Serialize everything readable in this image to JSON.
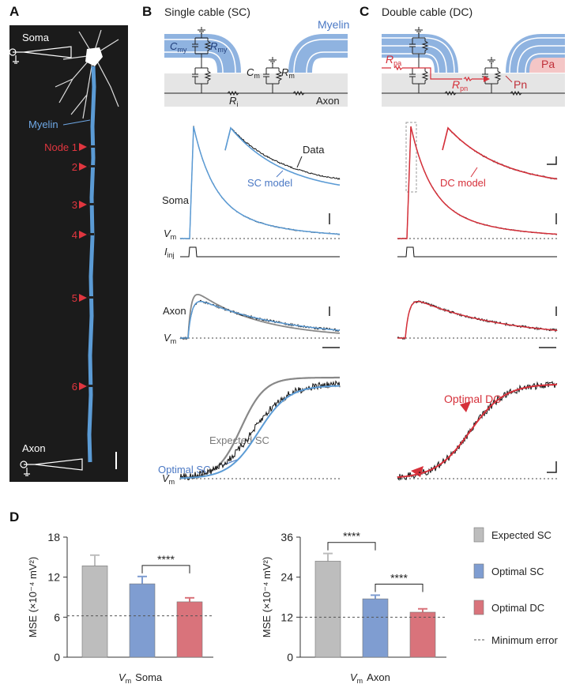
{
  "panel_a": {
    "letter": "A",
    "soma": "Soma",
    "myelin": "Myelin",
    "nodes": [
      "Node 1",
      "2",
      "3",
      "4",
      "5",
      "6"
    ],
    "axon": "Axon"
  },
  "panel_b": {
    "letter": "B",
    "title": "Single cable (SC)",
    "myelin": "Myelin",
    "c_my": {
      "main": "C",
      "sub": "my"
    },
    "r_my": {
      "main": "R",
      "sub": "my"
    },
    "c_m": {
      "main": "C",
      "sub": "m"
    },
    "r_m": {
      "main": "R",
      "sub": "m"
    },
    "r_i": {
      "main": "R",
      "sub": "i"
    },
    "axon": "Axon",
    "data": "Data",
    "model": "SC model",
    "soma": "Soma",
    "vm_soma": {
      "main": "V",
      "sub": "m"
    },
    "i_inj": {
      "main": "I",
      "sub": "inj"
    },
    "axon_trace": "Axon",
    "vm_axon": {
      "main": "V",
      "sub": "m"
    },
    "expected": "Expected SC",
    "optimal": "Optimal SC",
    "vm_zoom": {
      "main": "V",
      "sub": "m"
    }
  },
  "panel_c": {
    "letter": "C",
    "title": "Double cable (DC)",
    "r_pa": {
      "main": "R",
      "sub": "pa"
    },
    "r_pn": {
      "main": "R",
      "sub": "pn"
    },
    "pa": "Pa",
    "pn": "Pn",
    "model": "DC model",
    "optimal": "Optimal DC"
  },
  "panel_d": {
    "letter": "D",
    "legend": [
      {
        "name": "Expected SC",
        "color": "#bdbdbd"
      },
      {
        "name": "Optimal SC",
        "color": "#7f9dd1"
      },
      {
        "name": "Optimal DC",
        "color": "#d9737b"
      }
    ],
    "min_error_label": "Minimum error"
  },
  "chart_data": [
    {
      "type": "bar",
      "ylabel": "MSE (×10⁻⁴ mV²)",
      "xlabel": {
        "main": "V",
        "sub": "m",
        "text": "Soma"
      },
      "values": [
        13.7,
        11.0,
        8.3
      ],
      "errors": [
        1.6,
        1.1,
        0.6
      ],
      "min_error": 6.2,
      "ylim": [
        0,
        18
      ],
      "yticks": [
        0,
        6,
        12,
        18
      ],
      "annotations": [
        {
          "label": "****",
          "between": [
            1,
            2
          ]
        }
      ]
    },
    {
      "type": "bar",
      "ylabel": "MSE (×10⁻⁴ mV²)",
      "xlabel": {
        "main": "V",
        "sub": "m",
        "text": "Axon"
      },
      "values": [
        28.8,
        17.5,
        13.5
      ],
      "errors": [
        2.3,
        1.1,
        1.0
      ],
      "min_error": 12,
      "ylim": [
        0,
        36
      ],
      "yticks": [
        0,
        12,
        24,
        36
      ],
      "annotations": [
        {
          "label": "****",
          "between": [
            0,
            1
          ]
        },
        {
          "label": "****",
          "between": [
            1,
            2
          ]
        }
      ]
    }
  ]
}
